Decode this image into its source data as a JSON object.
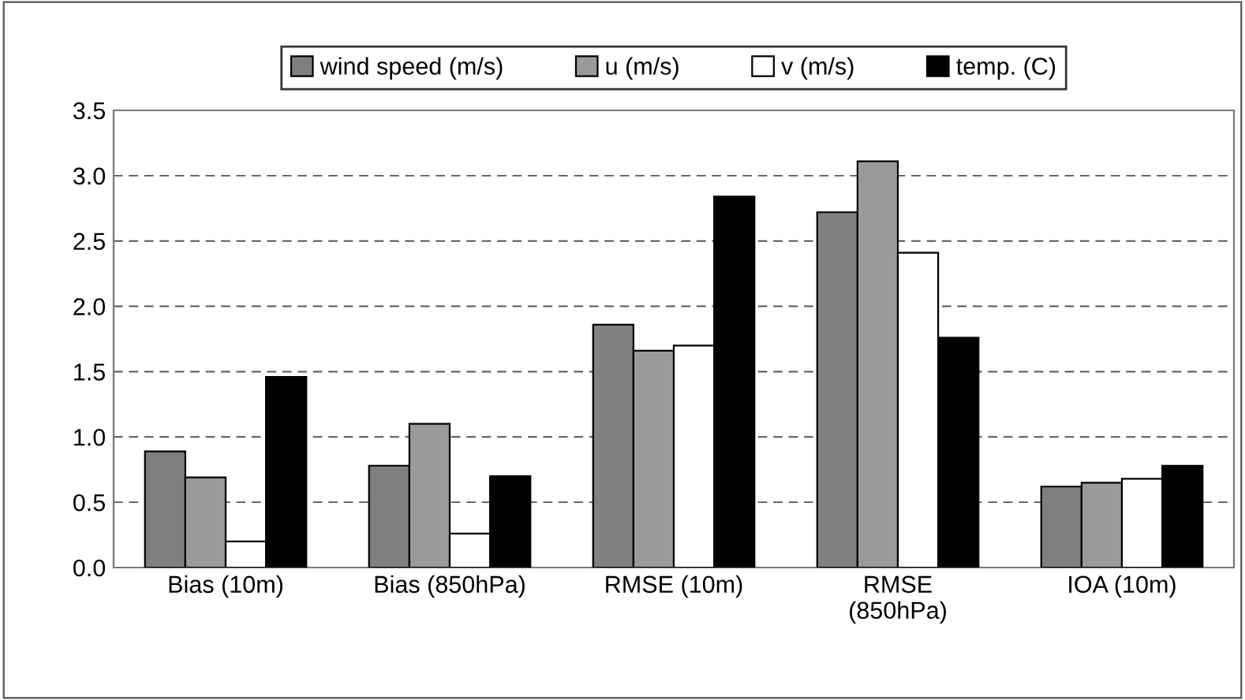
{
  "chart_data": {
    "type": "bar",
    "categories": [
      "Bias (10m)",
      "Bias (850hPa)",
      "RMSE (10m)",
      "RMSE\n(850hPa)",
      "IOA (10m)"
    ],
    "series": [
      {
        "name": "wind speed (m/s)",
        "color": "#7f7f7f",
        "values": [
          0.89,
          0.78,
          1.86,
          2.72,
          0.62
        ]
      },
      {
        "name": "u (m/s)",
        "color": "#9a9a9a",
        "values": [
          0.69,
          1.1,
          1.66,
          3.11,
          0.65
        ]
      },
      {
        "name": "v (m/s)",
        "color": "#ffffff",
        "values": [
          0.2,
          0.26,
          1.7,
          2.41,
          0.68
        ]
      },
      {
        "name": "temp. (C)",
        "color": "#000000",
        "values": [
          1.46,
          0.7,
          2.84,
          1.76,
          0.78
        ]
      }
    ],
    "ylim": [
      0,
      3.5
    ],
    "yticks": [
      {
        "value": 0,
        "label": "0.0"
      },
      {
        "value": 0.5,
        "label": "0.5"
      },
      {
        "value": 1,
        "label": "1.0"
      },
      {
        "value": 1.5,
        "label": "1.5"
      },
      {
        "value": 2,
        "label": "2.0"
      },
      {
        "value": 2.5,
        "label": "2.5"
      },
      {
        "value": 3,
        "label": "3.0"
      },
      {
        "value": 3.5,
        "label": "3.5"
      }
    ],
    "grid": "y",
    "legend": "top"
  }
}
